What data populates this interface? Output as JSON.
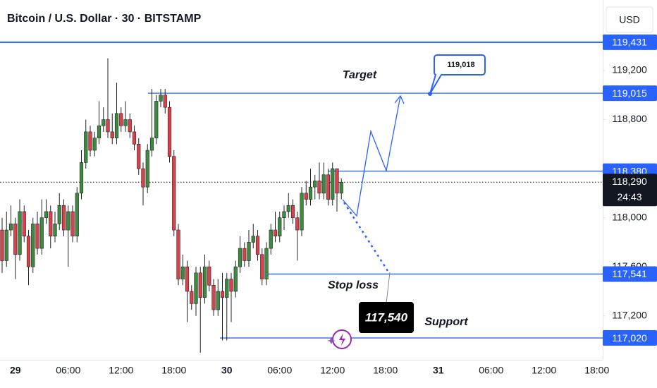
{
  "chart_data": {
    "type": "candlestick",
    "title": "Bitcoin / U.S. Dollar · 30 · BITSTAMP",
    "currency": "USD",
    "ylim": [
      116842,
      119775
    ],
    "yticks": [
      {
        "value": 119200,
        "label": "119,200"
      },
      {
        "value": 118800,
        "label": "118,800"
      },
      {
        "value": 118000,
        "label": "118,000"
      },
      {
        "value": 117600,
        "label": "117,600"
      },
      {
        "value": 117200,
        "label": "117,200"
      }
    ],
    "x_labels": [
      "29",
      "06:00",
      "12:00",
      "18:00",
      "30",
      "06:00",
      "12:00",
      "18:00",
      "31",
      "06:00",
      "12:00",
      "18:00"
    ],
    "up_color": "#3d8b40",
    "down_color": "#d8434b",
    "level_color": "#2962ff",
    "open": [
      117900,
      117650,
      117900,
      117950,
      117700,
      118050,
      117850,
      117600,
      117950,
      117750,
      118000,
      118050,
      117850,
      117950,
      118100,
      117900,
      118050,
      117850,
      118200,
      118450,
      118700,
      118550,
      118650,
      118750,
      118800,
      118700,
      118650,
      118850,
      118750,
      118800,
      118700,
      118600,
      118400,
      118250,
      118550,
      118650,
      118950,
      119000,
      118900,
      118500,
      117900,
      117500,
      117600,
      117400,
      117300,
      117550,
      117350,
      117600,
      117450,
      117250,
      117400,
      117350,
      117500,
      117400,
      117600,
      117750,
      117650,
      117800,
      117850,
      117700,
      117500,
      117750,
      117900,
      117850,
      118000,
      118050,
      118100,
      118000,
      117900,
      118200,
      118150,
      118250,
      118300,
      118200,
      118350,
      118150,
      118400,
      118200
    ],
    "high": [
      118000,
      118050,
      118100,
      118000,
      118150,
      118100,
      117900,
      118000,
      118050,
      118150,
      118150,
      118100,
      118050,
      118200,
      118150,
      118100,
      118100,
      118250,
      118550,
      118800,
      118750,
      118700,
      118950,
      118900,
      119300,
      118850,
      119100,
      118900,
      118950,
      118850,
      118750,
      118650,
      118450,
      118600,
      119050,
      119000,
      119050,
      119050,
      118950,
      118550,
      117950,
      117700,
      117650,
      117450,
      117600,
      117600,
      117700,
      117650,
      117500,
      117500,
      117550,
      117550,
      117550,
      117650,
      117850,
      117800,
      117900,
      117950,
      117900,
      117750,
      117800,
      117950,
      118050,
      118050,
      118100,
      118200,
      118150,
      118050,
      118250,
      118300,
      118400,
      118350,
      118450,
      118450,
      118400,
      118450,
      118400,
      118320
    ],
    "low": [
      117550,
      117600,
      117850,
      117500,
      117650,
      117800,
      117450,
      117550,
      117700,
      117700,
      117950,
      117750,
      117800,
      117900,
      117850,
      117600,
      117800,
      117800,
      118150,
      118400,
      118500,
      118500,
      118600,
      118700,
      118650,
      118600,
      118600,
      118700,
      118700,
      118650,
      118550,
      118350,
      118100,
      118200,
      118500,
      118600,
      118900,
      118850,
      118450,
      117850,
      117450,
      117450,
      117150,
      117250,
      117200,
      116900,
      117300,
      117400,
      117200,
      117200,
      117000,
      117000,
      117150,
      117350,
      117550,
      117600,
      117600,
      117750,
      117650,
      117450,
      117450,
      117700,
      117800,
      117800,
      117900,
      118000,
      117950,
      117650,
      117850,
      118100,
      118100,
      118150,
      118150,
      118150,
      118100,
      118100,
      118050,
      118150
    ],
    "close": [
      117650,
      117900,
      117950,
      117700,
      118050,
      117850,
      117600,
      117950,
      117750,
      118000,
      118050,
      117850,
      117950,
      118100,
      117900,
      118050,
      117850,
      118200,
      118450,
      118700,
      118550,
      118650,
      118750,
      118800,
      118700,
      118650,
      118850,
      118750,
      118800,
      118700,
      118600,
      118400,
      118250,
      118550,
      118650,
      118950,
      119000,
      118900,
      118500,
      117900,
      117500,
      117600,
      117400,
      117300,
      117550,
      117350,
      117600,
      117450,
      117250,
      117400,
      117350,
      117500,
      117400,
      117600,
      117750,
      117650,
      117800,
      117850,
      117700,
      117500,
      117750,
      117900,
      117850,
      118000,
      118050,
      118100,
      118000,
      117900,
      118200,
      118150,
      118250,
      118300,
      118200,
      118350,
      118150,
      118400,
      118200,
      118290
    ],
    "levels": [
      {
        "value": 119431,
        "label": "119,431"
      },
      {
        "value": 119015,
        "label": "119,015"
      },
      {
        "value": 118380,
        "label": "118,380"
      },
      {
        "value": 117541,
        "label": "117,541"
      },
      {
        "value": 117020,
        "label": "117,020"
      }
    ],
    "last_price": {
      "value": 118290,
      "label": "118,290",
      "timer": "24:43"
    },
    "annotations": {
      "target": "Target",
      "target_callout": "119,018",
      "stop_loss": "Stop loss",
      "stop_box": "117,540",
      "support": "Support"
    }
  }
}
